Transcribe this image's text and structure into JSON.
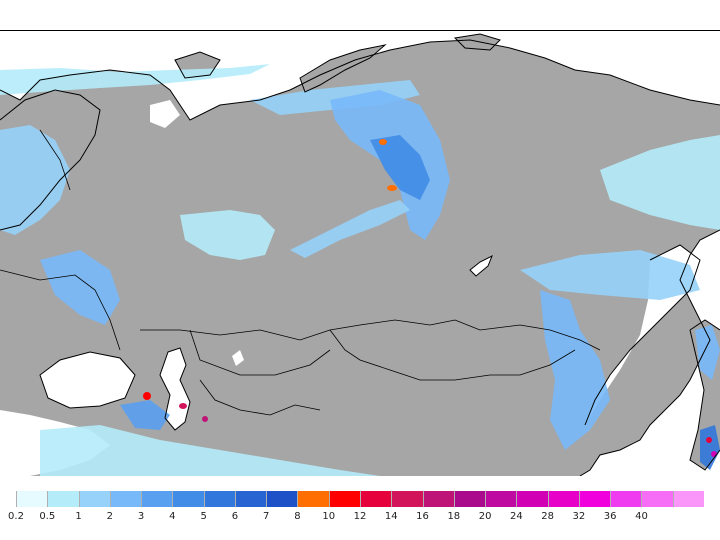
{
  "colors": {
    "land": "#a6a6a6",
    "water": "#ffffff",
    "border": "#000000",
    "topBorder": "#000000"
  },
  "precip_scale": [
    {
      "label": "0.2",
      "color": "#e6fbff"
    },
    {
      "label": "0.5",
      "color": "#b4ecfa"
    },
    {
      "label": "1",
      "color": "#96d2fa"
    },
    {
      "label": "2",
      "color": "#78b9fa"
    },
    {
      "label": "3",
      "color": "#5aa0f0"
    },
    {
      "label": "4",
      "color": "#418ce6"
    },
    {
      "label": "5",
      "color": "#3278dc"
    },
    {
      "label": "6",
      "color": "#2864d2"
    },
    {
      "label": "7",
      "color": "#1e50c8"
    },
    {
      "label": "8",
      "color": "#ff6e00"
    },
    {
      "label": "10",
      "color": "#ff0000"
    },
    {
      "label": "12",
      "color": "#e6003c"
    },
    {
      "label": "14",
      "color": "#d2145a"
    },
    {
      "label": "16",
      "color": "#be1478"
    },
    {
      "label": "18",
      "color": "#aa0a8c"
    },
    {
      "label": "20",
      "color": "#be0aa0"
    },
    {
      "label": "24",
      "color": "#d200b4"
    },
    {
      "label": "28",
      "color": "#e600c8"
    },
    {
      "label": "32",
      "color": "#f000dc"
    },
    {
      "label": "36",
      "color": "#f03cf0"
    },
    {
      "label": "40",
      "color": "#f56ef5"
    },
    {
      "label": "",
      "color": "#fa96fa"
    }
  ]
}
